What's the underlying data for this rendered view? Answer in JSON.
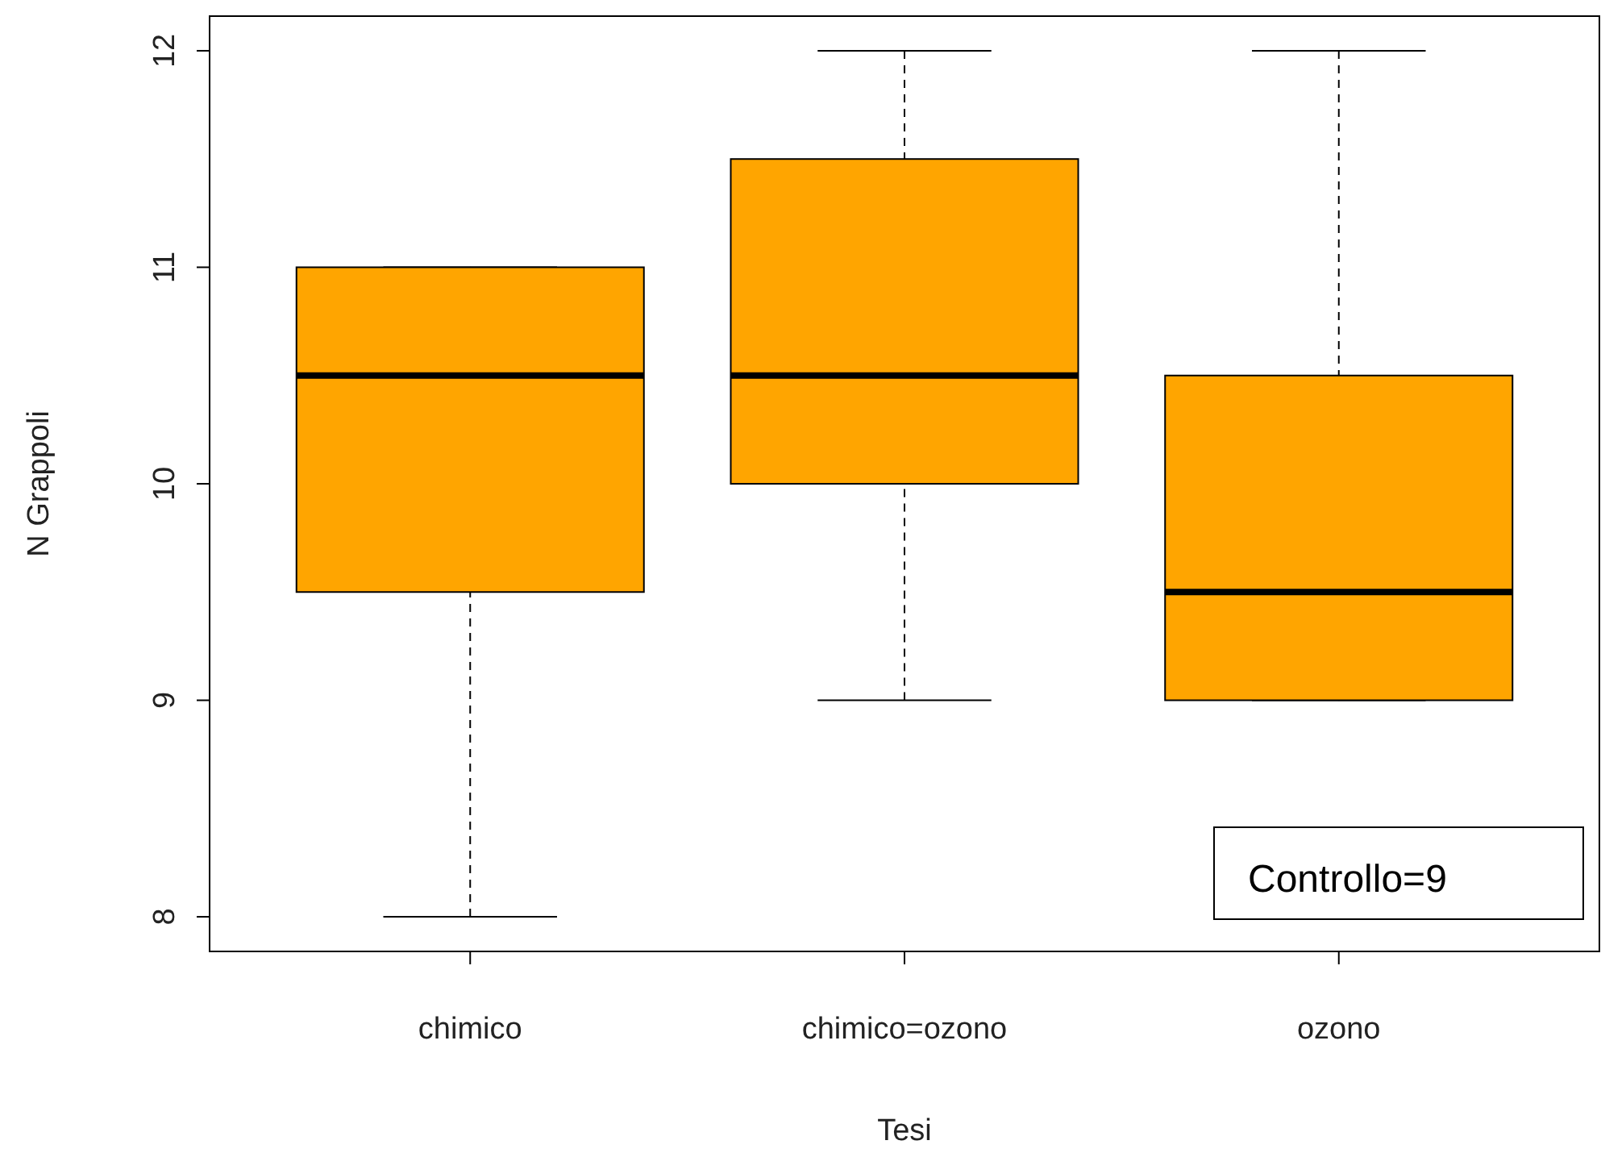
{
  "chart_data": {
    "type": "box",
    "xlabel": "Tesi",
    "ylabel": "N Grappoli",
    "categories": [
      "chimico",
      "chimico=ozono",
      "ozono"
    ],
    "color": "#ffa500",
    "boxes": [
      {
        "low": 8,
        "q1": 9.5,
        "median": 10.5,
        "q3": 11,
        "high": 11
      },
      {
        "low": 9,
        "q1": 10,
        "median": 10.5,
        "q3": 11.5,
        "high": 12
      },
      {
        "low": 9,
        "q1": 9,
        "median": 9.5,
        "q3": 10.5,
        "high": 12
      }
    ],
    "ylim": [
      7.84,
      12.16
    ],
    "yticks": [
      8,
      9,
      10,
      11,
      12
    ],
    "annotations": [
      "Controllo=9"
    ]
  }
}
